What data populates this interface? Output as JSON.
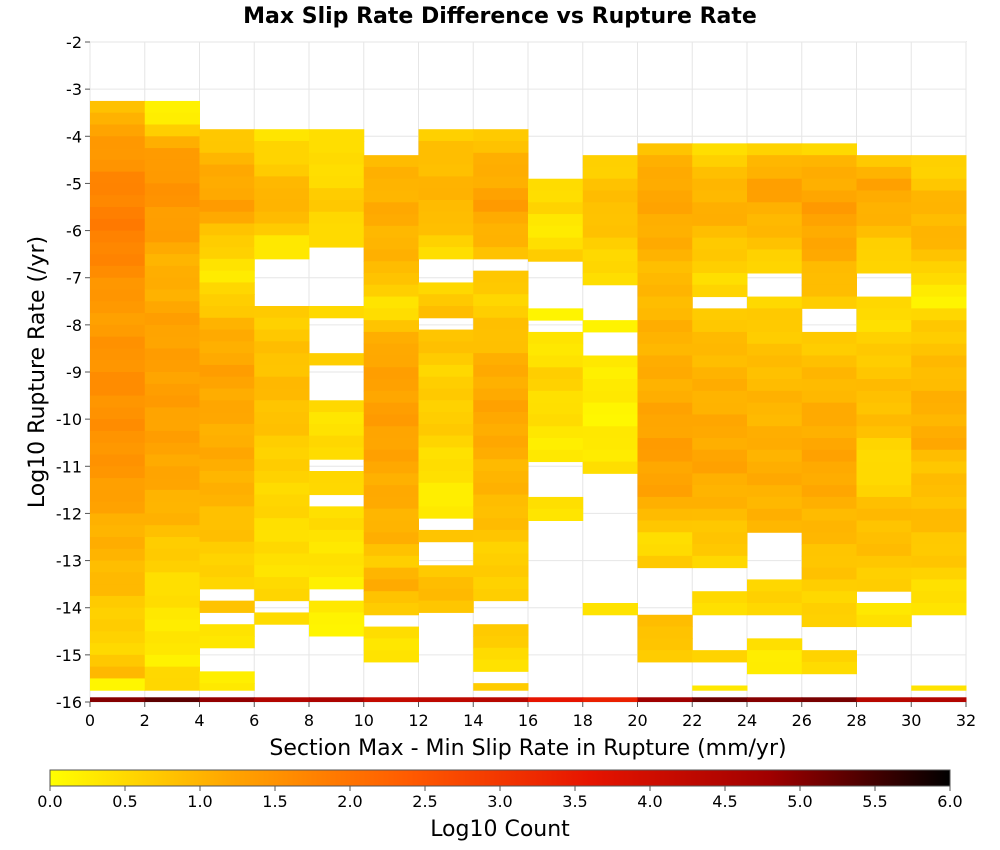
{
  "chart_data": {
    "type": "heatmap",
    "title": "Max Slip Rate Difference vs Rupture Rate",
    "xlabel": "Section Max - Min Slip Rate in Rupture (mm/yr)",
    "ylabel": "Log10 Rupture Rate (/yr)",
    "xlim": [
      0,
      32
    ],
    "ylim": [
      -16,
      -2
    ],
    "x_bin_width": 2,
    "y_bin_height": 0.25,
    "x_ticks": [
      "0",
      "2",
      "4",
      "6",
      "8",
      "10",
      "12",
      "14",
      "16",
      "18",
      "20",
      "22",
      "24",
      "26",
      "28",
      "30",
      "32"
    ],
    "y_ticks": [
      "-2",
      "-3",
      "-4",
      "-5",
      "-6",
      "-7",
      "-8",
      "-9",
      "-10",
      "-11",
      "-12",
      "-13",
      "-14",
      "-15",
      "-16"
    ],
    "colorbar": {
      "label": "Log10 Count",
      "range": [
        0,
        6
      ],
      "ticks": [
        "0.0",
        "0.5",
        "1.0",
        "1.5",
        "2.0",
        "2.5",
        "3.0",
        "3.5",
        "4.0",
        "4.5",
        "5.0",
        "5.5",
        "6.0"
      ],
      "colors": [
        "#ffff00",
        "#ffa500",
        "#ff5a00",
        "#e61400",
        "#a00000",
        "#000000"
      ]
    },
    "columns": [
      {
        "x": 0,
        "y_top": -3.25,
        "profile": [
          [
            -3.25,
            0.6
          ],
          [
            -3.6,
            1.1
          ],
          [
            -4.3,
            1.4
          ],
          [
            -5.0,
            1.7
          ],
          [
            -6.0,
            1.85
          ],
          [
            -7.0,
            1.55
          ],
          [
            -7.7,
            1.3
          ],
          [
            -9.0,
            1.55
          ],
          [
            -10.5,
            1.5
          ],
          [
            -11.5,
            1.35
          ],
          [
            -12.0,
            1.1
          ],
          [
            -13.5,
            0.9
          ],
          [
            -14.3,
            0.6
          ],
          [
            -15.0,
            0.6
          ],
          [
            -15.4,
            0.9
          ],
          [
            -15.6,
            0.2
          ]
        ],
        "gaps": [
          [
            -15.9,
            -15.75
          ]
        ]
      },
      {
        "x": 2,
        "y_top": -3.25,
        "profile": [
          [
            -3.25,
            0.15
          ],
          [
            -3.7,
            0.15
          ],
          [
            -3.9,
            0.8
          ],
          [
            -4.2,
            1.2
          ],
          [
            -5.0,
            1.5
          ],
          [
            -6.0,
            1.3
          ],
          [
            -6.8,
            1.0
          ],
          [
            -8.0,
            1.25
          ],
          [
            -9.5,
            1.3
          ],
          [
            -11.0,
            1.2
          ],
          [
            -12.0,
            1.0
          ],
          [
            -13.0,
            0.6
          ],
          [
            -14.0,
            0.35
          ],
          [
            -15.2,
            0.25
          ],
          [
            -15.5,
            0.7
          ],
          [
            -15.7,
            0.3
          ]
        ],
        "gaps": [
          [
            -14.6,
            -14.4
          ],
          [
            -15.1,
            -14.9
          ],
          [
            -15.9,
            -15.75
          ]
        ]
      },
      {
        "x": 4,
        "y_top": -3.85,
        "profile": [
          [
            -3.85,
            0.6
          ],
          [
            -4.5,
            1.0
          ],
          [
            -5.5,
            1.3
          ],
          [
            -6.3,
            0.6
          ],
          [
            -7.0,
            0.3
          ],
          [
            -8.0,
            1.0
          ],
          [
            -9.0,
            1.25
          ],
          [
            -10.0,
            1.1
          ],
          [
            -11.0,
            1.1
          ],
          [
            -12.0,
            0.9
          ],
          [
            -13.5,
            0.5
          ],
          [
            -14.0,
            0.8
          ],
          [
            -14.5,
            0.4
          ],
          [
            -15.5,
            0.3
          ]
        ],
        "gaps": [
          [
            -13.85,
            -13.6
          ],
          [
            -14.35,
            -14.15
          ],
          [
            -15.4,
            -14.75
          ],
          [
            -16.0,
            -15.75
          ]
        ]
      },
      {
        "x": 6,
        "y_top": -3.85,
        "profile": [
          [
            -3.85,
            0.25
          ],
          [
            -4.4,
            0.6
          ],
          [
            -5.5,
            1.1
          ],
          [
            -6.3,
            0.3
          ],
          [
            -7.5,
            0.6
          ],
          [
            -8.5,
            0.8
          ],
          [
            -9.5,
            0.9
          ],
          [
            -11.0,
            0.6
          ],
          [
            -12.0,
            0.5
          ],
          [
            -13.0,
            0.4
          ],
          [
            -13.8,
            0.5
          ]
        ],
        "gaps": [
          [
            -7.6,
            -6.6
          ],
          [
            -14.1,
            -13.85
          ],
          [
            -16.0,
            -14.25
          ]
        ]
      },
      {
        "x": 8,
        "y_top": -3.85,
        "profile": [
          [
            -3.85,
            0.55
          ],
          [
            -4.5,
            0.4
          ],
          [
            -5.5,
            0.7
          ],
          [
            -6.2,
            0.4
          ],
          [
            -8.0,
            0.5
          ],
          [
            -9.0,
            0.6
          ],
          [
            -10.0,
            0.4
          ],
          [
            -11.0,
            0.5
          ],
          [
            -12.5,
            0.4
          ],
          [
            -14.2,
            0.2
          ]
        ],
        "gaps": [
          [
            -7.6,
            -6.3
          ],
          [
            -8.5,
            -7.85
          ],
          [
            -9.5,
            -8.85
          ],
          [
            -11.1,
            -10.9
          ],
          [
            -11.9,
            -11.6
          ],
          [
            -13.95,
            -13.5
          ],
          [
            -16.0,
            -14.5
          ]
        ]
      },
      {
        "x": 10,
        "y_top": -4.4,
        "profile": [
          [
            -4.4,
            0.9
          ],
          [
            -5.5,
            1.1
          ],
          [
            -7.0,
            0.9
          ],
          [
            -7.5,
            0.3
          ],
          [
            -8.5,
            1.2
          ],
          [
            -10.0,
            1.3
          ],
          [
            -11.5,
            1.1
          ],
          [
            -12.5,
            1.0
          ],
          [
            -13.0,
            0.7
          ],
          [
            -13.5,
            1.1
          ],
          [
            -14.0,
            0.7
          ],
          [
            -15.0,
            0.3
          ]
        ],
        "gaps": [
          [
            -7.45,
            -7.3
          ],
          [
            -14.4,
            -14.1
          ],
          [
            -16.0,
            -15.25
          ]
        ]
      },
      {
        "x": 12,
        "y_top": -3.85,
        "profile": [
          [
            -3.85,
            0.6
          ],
          [
            -4.5,
            0.9
          ],
          [
            -5.5,
            1.0
          ],
          [
            -6.5,
            0.5
          ],
          [
            -7.2,
            0.6
          ],
          [
            -8.0,
            0.9
          ],
          [
            -9.0,
            0.6
          ],
          [
            -10.0,
            0.7
          ],
          [
            -11.0,
            0.4
          ],
          [
            -12.0,
            0.2
          ],
          [
            -12.5,
            0.9
          ],
          [
            -13.0,
            0.7
          ],
          [
            -13.5,
            0.9
          ],
          [
            -13.9,
            0.8
          ]
        ],
        "gaps": [
          [
            -7.0,
            -6.6
          ],
          [
            -8.0,
            -7.85
          ],
          [
            -12.45,
            -12.2
          ],
          [
            -13.0,
            -12.7
          ],
          [
            -16.0,
            -14.0
          ]
        ]
      },
      {
        "x": 14,
        "y_top": -3.85,
        "profile": [
          [
            -3.85,
            0.7
          ],
          [
            -4.5,
            1.0
          ],
          [
            -5.5,
            1.3
          ],
          [
            -6.5,
            0.8
          ],
          [
            -7.5,
            0.6
          ],
          [
            -9.0,
            1.1
          ],
          [
            -10.0,
            1.2
          ],
          [
            -11.0,
            1.0
          ],
          [
            -12.0,
            0.9
          ],
          [
            -13.0,
            0.6
          ],
          [
            -14.5,
            0.8
          ],
          [
            -15.0,
            0.4
          ],
          [
            -15.7,
            0.6
          ]
        ],
        "gaps": [
          [
            -6.85,
            -6.6
          ],
          [
            -14.25,
            -13.75
          ],
          [
            -15.6,
            -15.25
          ],
          [
            -16.0,
            -15.9
          ]
        ]
      },
      {
        "x": 16,
        "y_top": -4.9,
        "profile": [
          [
            -4.9,
            0.4
          ],
          [
            -5.5,
            0.6
          ],
          [
            -5.8,
            0.2
          ],
          [
            -6.5,
            0.6
          ],
          [
            -7.6,
            0.2
          ],
          [
            -8.5,
            0.3
          ],
          [
            -9.0,
            0.6
          ],
          [
            -10.0,
            0.4
          ],
          [
            -11.0,
            0.2
          ],
          [
            -11.5,
            0.3
          ],
          [
            -12.1,
            0.4
          ]
        ],
        "gaps": [
          [
            -7.6,
            -6.6
          ],
          [
            -8.05,
            -7.85
          ],
          [
            -11.7,
            -11.0
          ],
          [
            -16.0,
            -12.2
          ]
        ]
      },
      {
        "x": 18,
        "y_top": -4.4,
        "profile": [
          [
            -4.4,
            0.6
          ],
          [
            -5.5,
            0.9
          ],
          [
            -6.5,
            0.6
          ],
          [
            -7.0,
            0.4
          ],
          [
            -8.0,
            0.2
          ],
          [
            -9.0,
            0.3
          ],
          [
            -10.0,
            0.15
          ],
          [
            -11.0,
            0.4
          ],
          [
            -14.0,
            0.4
          ]
        ],
        "gaps": [
          [
            -7.85,
            -7.1
          ],
          [
            -8.6,
            -8.1
          ],
          [
            -13.85,
            -11.2
          ],
          [
            -16.0,
            -14.1
          ]
        ]
      },
      {
        "x": 20,
        "y_top": -4.15,
        "profile": [
          [
            -4.15,
            0.8
          ],
          [
            -5.0,
            1.2
          ],
          [
            -6.0,
            1.1
          ],
          [
            -7.0,
            0.9
          ],
          [
            -8.0,
            1.0
          ],
          [
            -9.5,
            1.1
          ],
          [
            -10.5,
            1.3
          ],
          [
            -11.5,
            1.2
          ],
          [
            -12.0,
            1.0
          ],
          [
            -12.5,
            0.4
          ],
          [
            -13.0,
            0.7
          ],
          [
            -14.5,
            0.9
          ],
          [
            -15.0,
            0.6
          ]
        ],
        "gaps": [
          [
            -7.45,
            -7.3
          ],
          [
            -12.45,
            -12.3
          ],
          [
            -14.05,
            -13.1
          ],
          [
            -16.0,
            -15.25
          ]
        ]
      },
      {
        "x": 22,
        "y_top": -4.15,
        "profile": [
          [
            -4.15,
            0.3
          ],
          [
            -4.5,
            0.7
          ],
          [
            -5.5,
            1.1
          ],
          [
            -6.5,
            0.7
          ],
          [
            -7.0,
            0.5
          ],
          [
            -8.0,
            0.8
          ],
          [
            -9.0,
            1.0
          ],
          [
            -10.0,
            1.1
          ],
          [
            -11.0,
            1.2
          ],
          [
            -12.0,
            0.9
          ],
          [
            -13.0,
            0.6
          ],
          [
            -14.0,
            0.5
          ],
          [
            -14.5,
            0.4
          ],
          [
            -15.0,
            0.6
          ],
          [
            -15.7,
            0.4
          ]
        ],
        "gaps": [
          [
            -7.6,
            -7.5
          ],
          [
            -13.7,
            -13.25
          ],
          [
            -14.8,
            -14.25
          ],
          [
            -15.6,
            -15.25
          ],
          [
            -16.0,
            -15.9
          ]
        ]
      },
      {
        "x": 24,
        "y_top": -4.15,
        "profile": [
          [
            -4.15,
            0.3
          ],
          [
            -4.5,
            0.9
          ],
          [
            -5.0,
            1.3
          ],
          [
            -5.5,
            1.1
          ],
          [
            -6.5,
            0.7
          ],
          [
            -7.0,
            0.4
          ],
          [
            -8.0,
            0.7
          ],
          [
            -9.0,
            0.9
          ],
          [
            -10.0,
            1.0
          ],
          [
            -11.0,
            1.1
          ],
          [
            -12.0,
            1.0
          ],
          [
            -13.0,
            0.7
          ],
          [
            -14.0,
            0.5
          ],
          [
            -15.0,
            0.3
          ]
        ],
        "gaps": [
          [
            -7.5,
            -6.85
          ],
          [
            -13.5,
            -12.5
          ],
          [
            -14.6,
            -14.1
          ],
          [
            -15.0,
            -14.85
          ],
          [
            -16.0,
            -15.5
          ]
        ]
      },
      {
        "x": 26,
        "y_top": -4.15,
        "profile": [
          [
            -4.15,
            0.3
          ],
          [
            -4.4,
            0.9
          ],
          [
            -5.5,
            1.3
          ],
          [
            -6.5,
            1.1
          ],
          [
            -7.0,
            0.9
          ],
          [
            -7.5,
            0.7
          ],
          [
            -8.0,
            0.6
          ],
          [
            -9.0,
            0.9
          ],
          [
            -10.0,
            1.1
          ],
          [
            -11.0,
            1.2
          ],
          [
            -12.0,
            1.0
          ],
          [
            -13.0,
            0.8
          ],
          [
            -13.8,
            0.6
          ],
          [
            -15.0,
            0.5
          ]
        ],
        "gaps": [
          [
            -8.1,
            -7.65
          ],
          [
            -15.0,
            -14.3
          ],
          [
            -16.0,
            -15.5
          ]
        ]
      },
      {
        "x": 28,
        "y_top": -4.4,
        "profile": [
          [
            -4.4,
            0.7
          ],
          [
            -5.0,
            1.2
          ],
          [
            -5.5,
            1.1
          ],
          [
            -6.5,
            0.6
          ],
          [
            -7.0,
            0.4
          ],
          [
            -8.0,
            0.5
          ],
          [
            -9.0,
            0.8
          ],
          [
            -10.0,
            0.9
          ],
          [
            -11.0,
            0.4
          ],
          [
            -12.0,
            0.9
          ],
          [
            -13.0,
            0.8
          ],
          [
            -14.0,
            0.4
          ]
        ],
        "gaps": [
          [
            -7.5,
            -6.9
          ],
          [
            -12.5,
            -12.3
          ],
          [
            -13.85,
            -13.65
          ],
          [
            -16.0,
            -14.5
          ]
        ]
      },
      {
        "x": 30,
        "y_top": -4.4,
        "profile": [
          [
            -4.4,
            0.5
          ],
          [
            -5.5,
            1.0
          ],
          [
            -6.5,
            0.9
          ],
          [
            -7.0,
            0.4
          ],
          [
            -7.5,
            0.2
          ],
          [
            -8.0,
            0.7
          ],
          [
            -9.5,
            1.0
          ],
          [
            -10.5,
            1.1
          ],
          [
            -11.0,
            0.8
          ],
          [
            -12.0,
            0.9
          ],
          [
            -13.0,
            0.7
          ],
          [
            -14.0,
            0.3
          ],
          [
            -15.7,
            0.3
          ]
        ],
        "gaps": [
          [
            -14.4,
            -14.2
          ],
          [
            -15.6,
            -14.5
          ],
          [
            -16.0,
            -15.9
          ]
        ]
      }
    ],
    "bottom_row": {
      "y": -16,
      "values": [
        5.0,
        5.3,
        4.9,
        4.5,
        4.6,
        4.2,
        4.3,
        4.4,
        3.6,
        3.4,
        4.8,
        5.2,
        5.0,
        5.1,
        4.4,
        4.5
      ]
    }
  }
}
